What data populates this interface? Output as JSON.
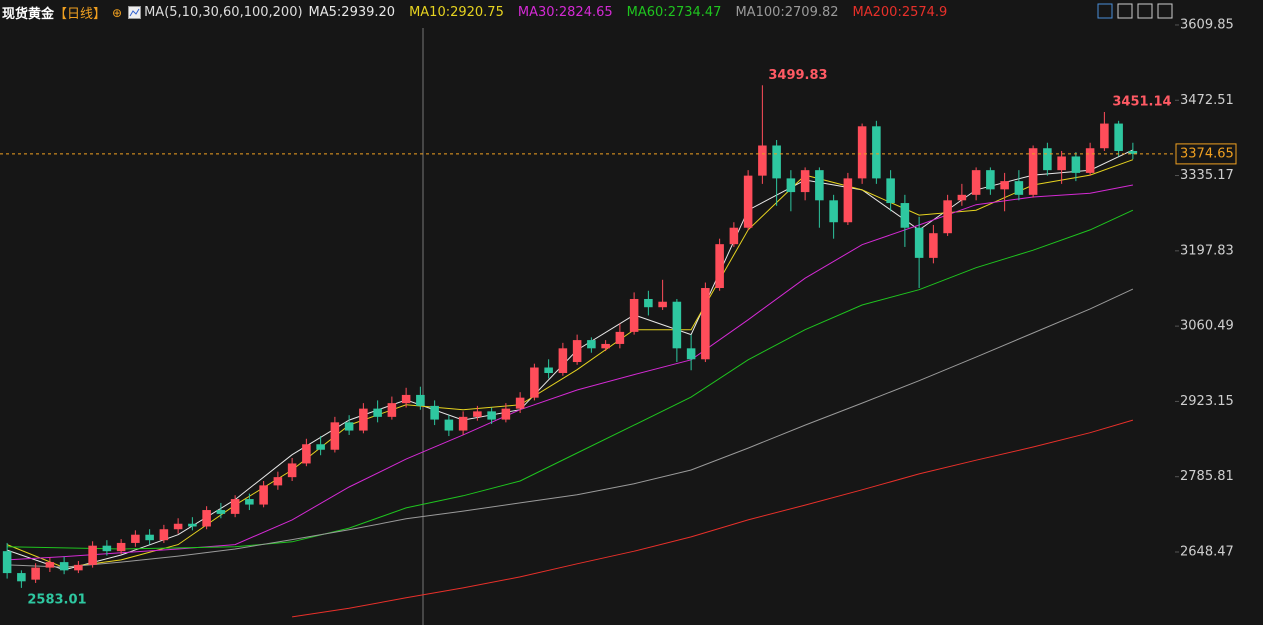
{
  "chart_data": {
    "type": "candlestick",
    "title": "现货黄金",
    "period": "【日线】",
    "indicator": "MA(5,10,30,60,100,200)",
    "up_color": "#ff4d5a",
    "down_color": "#2ec7a0",
    "ylim": [
      2515.3,
      3655.4
    ],
    "yticks": [
      2648.47,
      2785.81,
      2923.15,
      3060.49,
      3197.83,
      3335.17,
      3472.51,
      3609.85
    ],
    "open": [
      2650,
      2610,
      2598,
      2620,
      2630,
      2615,
      2625,
      2660,
      2650,
      2665,
      2680,
      2670,
      2690,
      2700,
      2695,
      2725,
      2718,
      2745,
      2735,
      2770,
      2785,
      2810,
      2845,
      2835,
      2885,
      2870,
      2910,
      2895,
      2920,
      2935,
      2915,
      2890,
      2870,
      2895,
      2905,
      2890,
      2910,
      2930,
      2985,
      2975,
      2995,
      3035,
      3020,
      3028,
      3050,
      3110,
      3095,
      3105,
      3020,
      3000,
      3130,
      3210,
      3240,
      3335,
      3390,
      3330,
      3305,
      3345,
      3290,
      3250,
      3330,
      3425,
      3330,
      3285,
      3240,
      3185,
      3230,
      3290,
      3300,
      3345,
      3310,
      3325,
      3300,
      3385,
      3345,
      3370,
      3340,
      3385,
      3430,
      3380
    ],
    "high": [
      2665,
      2615,
      2628,
      2638,
      2640,
      2632,
      2668,
      2670,
      2672,
      2688,
      2690,
      2698,
      2710,
      2712,
      2732,
      2738,
      2752,
      2755,
      2778,
      2795,
      2820,
      2855,
      2860,
      2895,
      2898,
      2920,
      2925,
      2932,
      2948,
      2950,
      2925,
      2898,
      2905,
      2915,
      2912,
      2920,
      2940,
      2992,
      3000,
      3030,
      3045,
      3040,
      3035,
      3065,
      3122,
      3125,
      3145,
      3110,
      3045,
      3140,
      3220,
      3250,
      3345,
      3499.83,
      3400,
      3345,
      3350,
      3350,
      3300,
      3340,
      3430,
      3435,
      3345,
      3300,
      3260,
      3245,
      3300,
      3320,
      3350,
      3350,
      3340,
      3345,
      3390,
      3395,
      3380,
      3378,
      3395,
      3451.14,
      3435,
      3395
    ],
    "low": [
      2600,
      2583.01,
      2592,
      2612,
      2608,
      2610,
      2620,
      2642,
      2645,
      2658,
      2662,
      2665,
      2682,
      2688,
      2690,
      2710,
      2712,
      2725,
      2730,
      2762,
      2778,
      2805,
      2825,
      2830,
      2862,
      2865,
      2885,
      2890,
      2912,
      2908,
      2880,
      2860,
      2862,
      2888,
      2882,
      2885,
      2902,
      2925,
      2965,
      2970,
      2990,
      3012,
      3015,
      3020,
      3045,
      3080,
      3090,
      2995,
      2980,
      2995,
      3125,
      3205,
      3235,
      3320,
      3280,
      3270,
      3290,
      3240,
      3220,
      3245,
      3320,
      3320,
      3270,
      3205,
      3130,
      3175,
      3225,
      3280,
      3290,
      3300,
      3270,
      3290,
      3295,
      3335,
      3320,
      3325,
      3335,
      3380,
      3370,
      3365
    ],
    "close": [
      2610,
      2595,
      2620,
      2630,
      2615,
      2625,
      2660,
      2650,
      2665,
      2680,
      2670,
      2690,
      2700,
      2695,
      2725,
      2718,
      2745,
      2735,
      2770,
      2785,
      2810,
      2845,
      2835,
      2885,
      2870,
      2910,
      2895,
      2920,
      2935,
      2915,
      2890,
      2870,
      2895,
      2905,
      2890,
      2910,
      2930,
      2985,
      2975,
      3020,
      3035,
      3020,
      3028,
      3050,
      3110,
      3095,
      3105,
      3020,
      3000,
      3130,
      3210,
      3240,
      3335,
      3390,
      3330,
      3305,
      3345,
      3290,
      3250,
      3330,
      3425,
      3330,
      3285,
      3240,
      3185,
      3230,
      3290,
      3300,
      3345,
      3310,
      3325,
      3300,
      3385,
      3345,
      3370,
      3340,
      3385,
      3430,
      3380,
      3374.65
    ],
    "ma_x": [
      0,
      4,
      8,
      12,
      16,
      20,
      24,
      28,
      32,
      36,
      40,
      44,
      48,
      52,
      56,
      60,
      64,
      68,
      72,
      76,
      79
    ],
    "series": [
      {
        "name": "MA5:2939.20",
        "color": "#e8e8e8",
        "values": [
          2652,
          2616,
          2643,
          2680,
          2744,
          2826,
          2889,
          2926,
          2889,
          2908,
          3017,
          3081,
          3045,
          3272,
          3327,
          3309,
          3236,
          3309,
          3336,
          3345,
          3382
        ]
      },
      {
        "name": "MA10:2920.75",
        "color": "#e6d320",
        "values": [
          2662,
          2620,
          2634,
          2662,
          2734,
          2798,
          2880,
          2917,
          2908,
          2917,
          2981,
          3054,
          3054,
          3236,
          3336,
          3309,
          3263,
          3272,
          3318,
          3336,
          3364
        ]
      },
      {
        "name": "MA30:2824.65",
        "color": "#d42ad4",
        "values": [
          2634,
          2640,
          2647,
          2654,
          2662,
          2707,
          2767,
          2818,
          2862,
          2908,
          2944,
          2972,
          2999,
          3072,
          3148,
          3209,
          3245,
          3282,
          3296,
          3303,
          3318
        ]
      },
      {
        "name": "MA60:2734.47",
        "color": "#1fc41f",
        "values": [
          2658,
          2656,
          2654,
          2656,
          2658,
          2667,
          2692,
          2729,
          2751,
          2778,
          2829,
          2880,
          2931,
          2999,
          3054,
          3099,
          3127,
          3167,
          3199,
          3236,
          3272
        ]
      },
      {
        "name": "MA100:2709.82",
        "color": "#9a9a9a",
        "values": [
          2625,
          2621,
          2630,
          2641,
          2654,
          2671,
          2689,
          2709,
          2723,
          2738,
          2753,
          2773,
          2798,
          2838,
          2880,
          2920,
          2961,
          3004,
          3048,
          3092,
          3128
        ]
      },
      {
        "name": "MA200:2574.9",
        "color": "#e8302a",
        "values": [
          null,
          null,
          null,
          null,
          null,
          2530,
          2546,
          2565,
          2583,
          2603,
          2627,
          2650,
          2676,
          2707,
          2734,
          2762,
          2791,
          2816,
          2840,
          2866,
          2889
        ]
      }
    ]
  }
}
